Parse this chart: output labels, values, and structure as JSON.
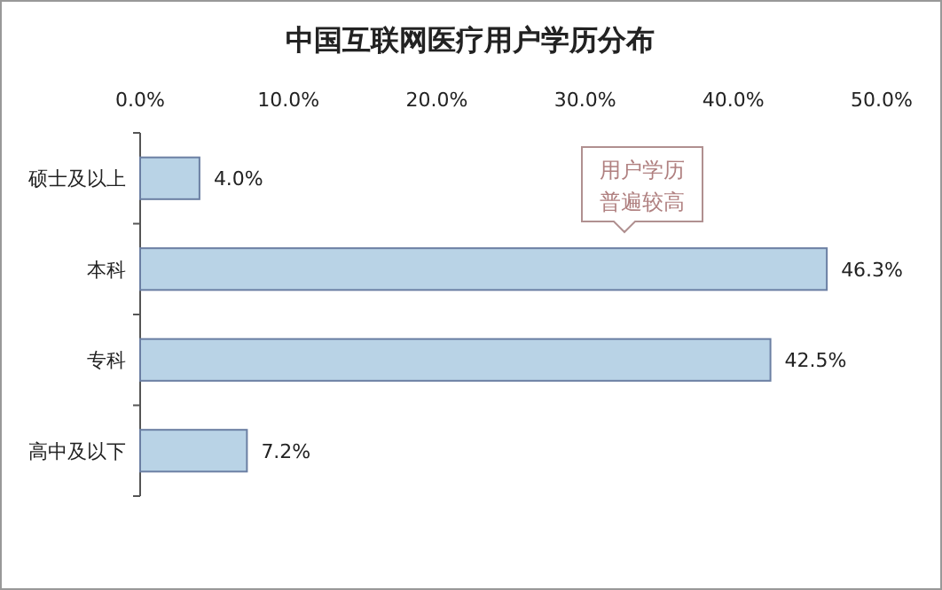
{
  "chart_data": {
    "type": "bar",
    "orientation": "horizontal",
    "title": "中国互联网医疗用户学历分布",
    "categories": [
      "硕士及以上",
      "本科",
      "专科",
      "高中及以下"
    ],
    "values": [
      4.0,
      46.3,
      42.5,
      7.2
    ],
    "color": "#b9d3e6",
    "value_labels": [
      "4.0%",
      "46.3%",
      "42.5%",
      "7.2%"
    ],
    "xlim": [
      0,
      50
    ],
    "xticks": [
      {
        "value": 0,
        "label": "0.0%"
      },
      {
        "value": 10,
        "label": "10.0%"
      },
      {
        "value": 20,
        "label": "20.0%"
      },
      {
        "value": 30,
        "label": "30.0%"
      },
      {
        "value": 40,
        "label": "40.0%"
      },
      {
        "value": 50,
        "label": "50.0%"
      }
    ],
    "grid": false,
    "annotations": [
      "用户学历普遍较高"
    ]
  }
}
